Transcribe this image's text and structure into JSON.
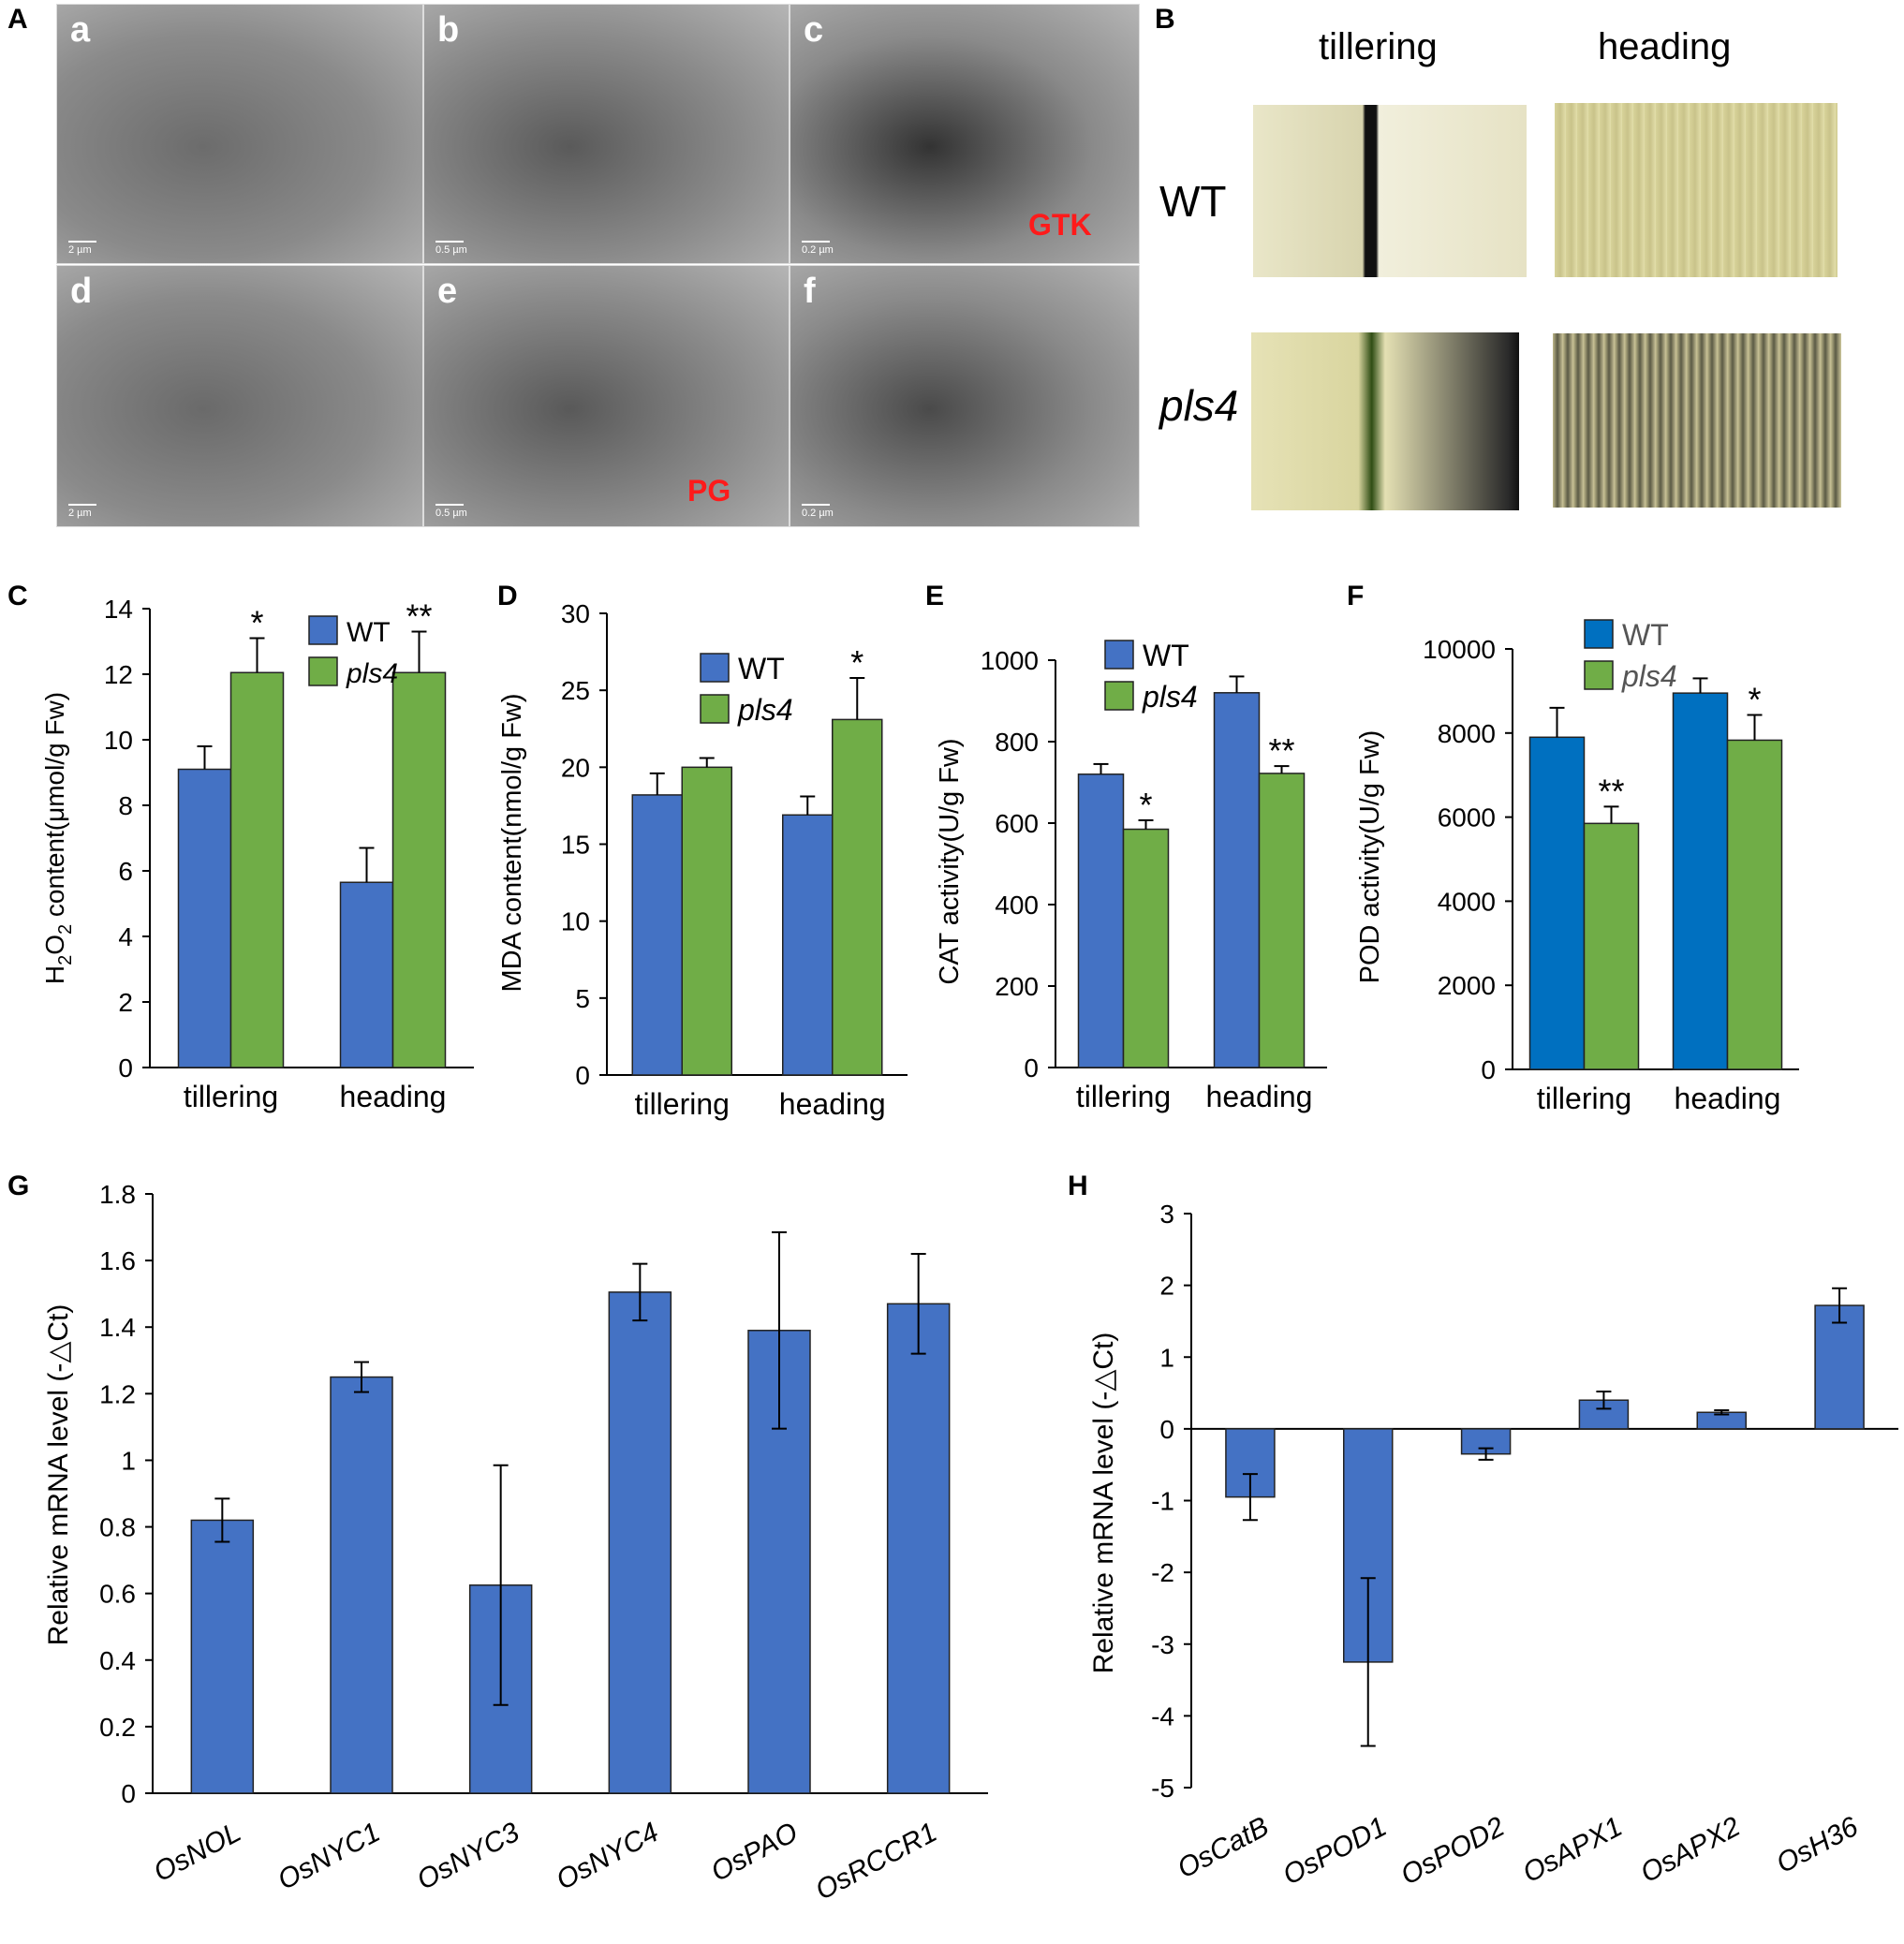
{
  "panel_labels": [
    "A",
    "B",
    "C",
    "D",
    "E",
    "F",
    "G",
    "H"
  ],
  "tem": {
    "letters": [
      "a",
      "b",
      "c",
      "d",
      "e",
      "f"
    ],
    "scale_bars": [
      "2 µm",
      "0.5 µm",
      "0.2 µm",
      "2 µm",
      "0.5 µm",
      "0.2 µm"
    ],
    "annotations": {
      "gtk": "GTK",
      "pg": "PG"
    }
  },
  "stain": {
    "col_labels": [
      "tillering",
      "heading"
    ],
    "row_labels": [
      "WT",
      "pls4"
    ]
  },
  "colors": {
    "wt": "#4472c4",
    "wt_f": "#0070c0",
    "pls4": "#70ad47",
    "axis": "#000000"
  },
  "chart_data": [
    {
      "id": "C",
      "type": "bar",
      "categories": [
        "tillering",
        "heading"
      ],
      "ylabel": "H₂O₂ content(μmol/g Fw)",
      "ylim": [
        0,
        14
      ],
      "yticks": [
        0,
        2,
        4,
        6,
        8,
        10,
        12,
        14
      ],
      "series": [
        {
          "name": "WT",
          "values": [
            9.1,
            5.65
          ],
          "errors": [
            0.7,
            1.05
          ]
        },
        {
          "name": "pls4",
          "values": [
            12.05,
            12.05
          ],
          "errors": [
            1.05,
            1.25
          ]
        }
      ],
      "annotations": [
        "*",
        "**"
      ],
      "legend": "top-right"
    },
    {
      "id": "D",
      "type": "bar",
      "categories": [
        "tillering",
        "heading"
      ],
      "ylabel": "MDA content(nmol/g Fw)",
      "ylim": [
        0,
        30
      ],
      "yticks": [
        0,
        5,
        10,
        15,
        20,
        25,
        30
      ],
      "series": [
        {
          "name": "WT",
          "values": [
            18.2,
            16.9
          ],
          "errors": [
            1.4,
            1.2
          ]
        },
        {
          "name": "pls4",
          "values": [
            20.0,
            23.1
          ],
          "errors": [
            0.6,
            2.7
          ]
        }
      ],
      "annotations": [
        "",
        "*"
      ],
      "legend": "top-right"
    },
    {
      "id": "E",
      "type": "bar",
      "categories": [
        "tillering",
        "heading"
      ],
      "ylabel": "CAT activity(U/g Fw)",
      "ylim": [
        0,
        1000
      ],
      "yticks": [
        0,
        200,
        400,
        600,
        800,
        1000
      ],
      "series": [
        {
          "name": "WT",
          "values": [
            720,
            920
          ],
          "errors": [
            25,
            40
          ]
        },
        {
          "name": "pls4",
          "values": [
            585,
            722
          ],
          "errors": [
            22,
            18
          ]
        }
      ],
      "annotations": [
        "*",
        "**"
      ],
      "legend": "top-left"
    },
    {
      "id": "F",
      "type": "bar",
      "categories": [
        "tillering",
        "heading"
      ],
      "ylabel": "POD activity(U/g Fw)",
      "ylim": [
        0,
        10000
      ],
      "yticks": [
        0,
        2000,
        4000,
        6000,
        8000,
        10000
      ],
      "series": [
        {
          "name": "WT",
          "values": [
            7900,
            8950
          ],
          "errors": [
            700,
            350
          ]
        },
        {
          "name": "pls4",
          "values": [
            5850,
            7830
          ],
          "errors": [
            400,
            600
          ]
        }
      ],
      "annotations": [
        "**",
        "*"
      ],
      "legend": "top-left"
    },
    {
      "id": "G",
      "type": "bar",
      "categories": [
        "OsNOL",
        "OsNYC1",
        "OsNYC3",
        "OsNYC4",
        "OsPAO",
        "OsRCCR1"
      ],
      "ylabel": "Relative mRNA level (-△Ct)",
      "ylim": [
        0,
        1.8
      ],
      "yticks": [
        "0",
        "0.2",
        "0.4",
        "0.6",
        "0.8",
        "1",
        "1.2",
        "1.4",
        "1.6",
        "1.8"
      ],
      "values": [
        0.82,
        1.25,
        0.625,
        1.505,
        1.39,
        1.47
      ],
      "errors": [
        0.065,
        0.045,
        0.36,
        0.085,
        0.295,
        0.15
      ]
    },
    {
      "id": "H",
      "type": "bar",
      "categories": [
        "OsCatB",
        "OsPOD1",
        "OsPOD2",
        "OsAPX1",
        "OsAPX2",
        "OsH36"
      ],
      "ylabel": "Relative mRNA level (-△Ct)",
      "ylim": [
        -5,
        3
      ],
      "yticks": [
        "-5",
        "-4",
        "-3",
        "-2",
        "-1",
        "0",
        "1",
        "2",
        "3"
      ],
      "values": [
        -0.95,
        -3.25,
        -0.35,
        0.4,
        0.23,
        1.72
      ],
      "errors": [
        0.32,
        1.17,
        0.08,
        0.12,
        0.03,
        0.24
      ]
    }
  ]
}
